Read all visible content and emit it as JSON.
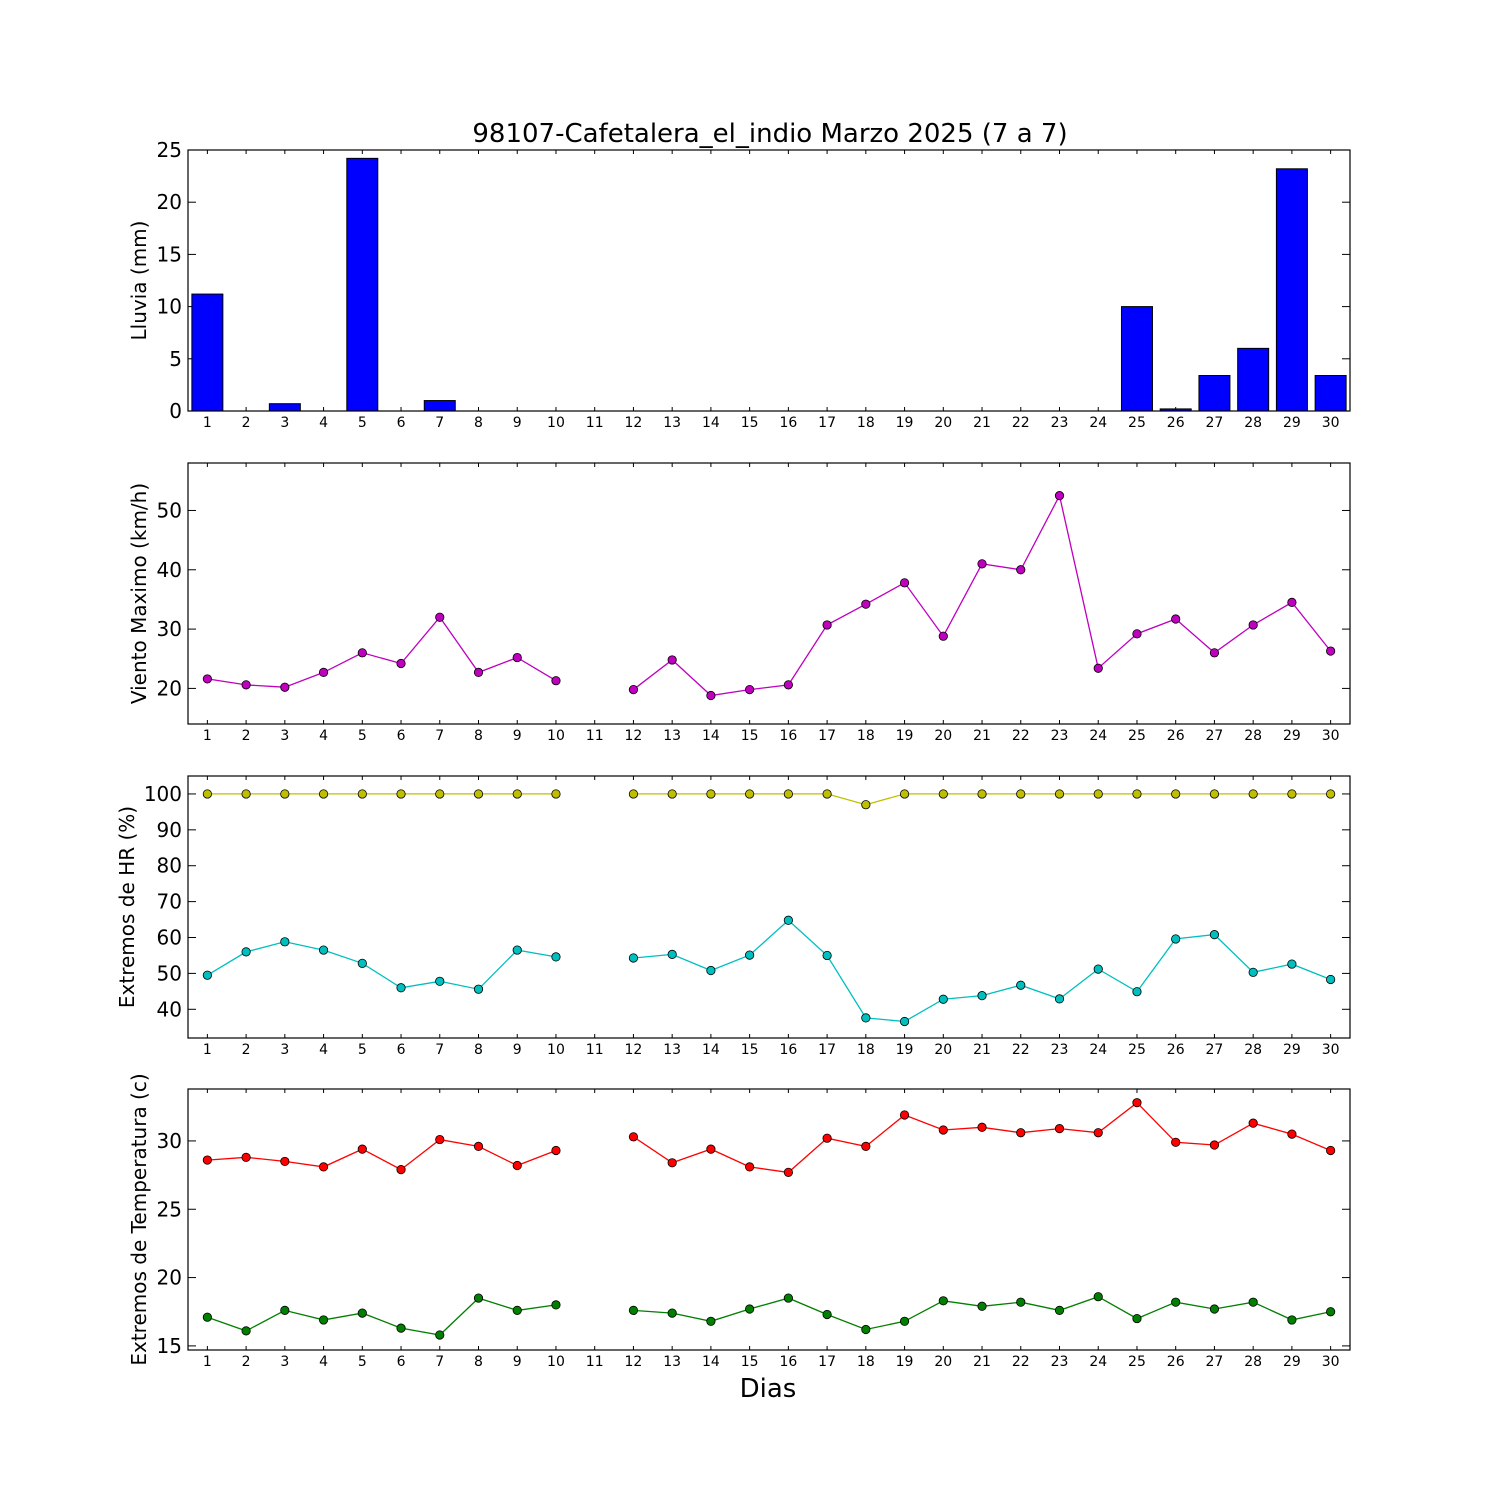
{
  "figure": {
    "title": "98107-Cafetalera_el_indio Marzo 2025  (7 a 7)",
    "xlabel": "Dias"
  },
  "chart_data": [
    {
      "type": "bar",
      "ylabel": "Lluvia (mm)",
      "categories": [
        1,
        2,
        3,
        4,
        5,
        6,
        7,
        8,
        9,
        10,
        11,
        12,
        13,
        14,
        15,
        16,
        17,
        18,
        19,
        20,
        21,
        22,
        23,
        24,
        25,
        26,
        27,
        28,
        29,
        30
      ],
      "values": [
        11.2,
        0,
        0.7,
        0,
        24.2,
        0,
        1.0,
        0,
        0,
        0,
        0,
        0,
        0,
        0,
        0,
        0,
        0,
        0,
        0,
        0,
        0,
        0,
        0,
        0,
        10.0,
        0.2,
        3.4,
        6.0,
        23.2,
        3.4
      ],
      "ylim": [
        0,
        25
      ],
      "yticks": [
        0,
        5,
        10,
        15,
        20,
        25
      ],
      "color": "#0000ff"
    },
    {
      "type": "line",
      "ylabel": "Viento Maximo (km/h)",
      "x": [
        1,
        2,
        3,
        4,
        5,
        6,
        7,
        8,
        9,
        10,
        11,
        12,
        13,
        14,
        15,
        16,
        17,
        18,
        19,
        20,
        21,
        22,
        23,
        24,
        25,
        26,
        27,
        28,
        29,
        30
      ],
      "series": [
        {
          "color": "#bf00bf",
          "values": [
            21.6,
            20.6,
            20.2,
            22.7,
            26.0,
            24.2,
            32.0,
            22.7,
            25.2,
            21.3,
            null,
            19.8,
            24.8,
            18.8,
            19.8,
            20.6,
            30.7,
            34.2,
            37.8,
            28.8,
            41.0,
            40.0,
            52.5,
            23.4,
            29.2,
            31.7,
            26.0,
            30.7,
            34.5,
            26.3
          ]
        }
      ],
      "ylim": [
        14,
        58
      ],
      "yticks": [
        20,
        30,
        40,
        50
      ]
    },
    {
      "type": "line",
      "ylabel": "Extremos de HR (%)",
      "x": [
        1,
        2,
        3,
        4,
        5,
        6,
        7,
        8,
        9,
        10,
        11,
        12,
        13,
        14,
        15,
        16,
        17,
        18,
        19,
        20,
        21,
        22,
        23,
        24,
        25,
        26,
        27,
        28,
        29,
        30
      ],
      "series": [
        {
          "color": "#bfbf00",
          "values": [
            100,
            100,
            100,
            100,
            100,
            100,
            100,
            100,
            100,
            100,
            null,
            100,
            100,
            100,
            100,
            100,
            100,
            97,
            100,
            100,
            100,
            100,
            100,
            100,
            100,
            100,
            100,
            100,
            100,
            100
          ]
        },
        {
          "color": "#00bfbf",
          "values": [
            49.5,
            56,
            58.8,
            56.5,
            52.8,
            46,
            47.8,
            45.6,
            56.5,
            54.6,
            null,
            54.3,
            55.3,
            50.8,
            55.1,
            64.8,
            55.0,
            37.6,
            36.6,
            42.8,
            43.8,
            46.7,
            42.9,
            51.2,
            44.9,
            59.6,
            60.8,
            50.3,
            52.6,
            48.3
          ]
        }
      ],
      "ylim": [
        32,
        105
      ],
      "yticks": [
        40,
        50,
        60,
        70,
        80,
        90,
        100
      ]
    },
    {
      "type": "line",
      "ylabel": "Extremos de Temperatura (c)",
      "x": [
        1,
        2,
        3,
        4,
        5,
        6,
        7,
        8,
        9,
        10,
        11,
        12,
        13,
        14,
        15,
        16,
        17,
        18,
        19,
        20,
        21,
        22,
        23,
        24,
        25,
        26,
        27,
        28,
        29,
        30
      ],
      "series": [
        {
          "color": "#ff0000",
          "values": [
            28.6,
            28.8,
            28.5,
            28.1,
            29.4,
            27.9,
            30.1,
            29.6,
            28.2,
            29.3,
            null,
            30.3,
            28.4,
            29.4,
            28.1,
            27.7,
            30.2,
            29.6,
            31.9,
            30.8,
            31.0,
            30.6,
            30.9,
            30.6,
            32.8,
            29.9,
            29.7,
            31.3,
            30.5,
            29.3
          ]
        },
        {
          "color": "#007f00",
          "values": [
            17.1,
            16.1,
            17.6,
            16.9,
            17.4,
            16.3,
            15.8,
            18.5,
            17.6,
            18.0,
            null,
            17.6,
            17.4,
            16.8,
            17.7,
            18.5,
            17.3,
            16.2,
            16.8,
            18.3,
            17.9,
            18.2,
            17.6,
            18.6,
            17.0,
            18.2,
            17.7,
            18.2,
            16.9,
            17.5
          ]
        }
      ],
      "ylim": [
        14.7,
        33.8
      ],
      "yticks": [
        15,
        20,
        25,
        30
      ]
    }
  ]
}
